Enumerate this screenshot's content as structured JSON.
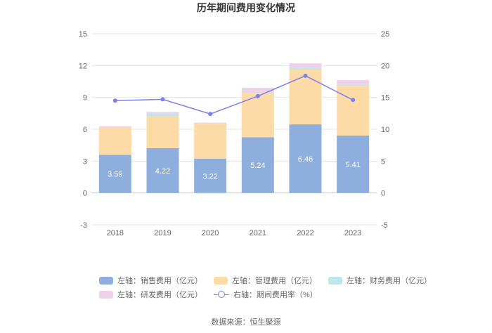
{
  "chart_data": {
    "type": "bar",
    "title": "历年期间费用变化情况",
    "categories": [
      "2018",
      "2019",
      "2020",
      "2021",
      "2022",
      "2023"
    ],
    "stacked": true,
    "left_axis": {
      "ylim": [
        -3,
        15
      ],
      "ticks": [
        "-3",
        "0",
        "3",
        "6",
        "9",
        "12",
        "15"
      ]
    },
    "right_axis": {
      "ylim": [
        -5,
        25
      ],
      "ticks": [
        "-5",
        "0",
        "5",
        "10",
        "15",
        "20",
        "25"
      ]
    },
    "series": [
      {
        "name": "左轴：销售费用（亿元）",
        "color": "#8eaedd",
        "axis": "left",
        "values": [
          3.59,
          4.22,
          3.22,
          5.24,
          6.46,
          5.41
        ],
        "labels": [
          "3.59",
          "4.22",
          "3.22",
          "5.24",
          "6.46",
          "5.41"
        ]
      },
      {
        "name": "左轴：管理费用（亿元）",
        "color": "#fddba6",
        "axis": "left",
        "values": [
          2.62,
          2.98,
          3.3,
          4.18,
          5.2,
          4.68
        ]
      },
      {
        "name": "左轴：财务费用（亿元）",
        "color": "#c0e5ea",
        "axis": "left",
        "values": [
          0.0,
          0.28,
          -0.02,
          0.05,
          0.15,
          0.12
        ]
      },
      {
        "name": "左轴：研发费用（亿元）",
        "color": "#efd0ea",
        "axis": "left",
        "values": [
          0.08,
          0.15,
          0.1,
          0.43,
          0.4,
          0.42
        ]
      },
      {
        "name": "右轴：期间费用率（%）",
        "color": "#7b7ff0",
        "axis": "right",
        "type": "line",
        "values": [
          14.5,
          14.7,
          12.4,
          15.2,
          18.4,
          14.6
        ]
      }
    ]
  },
  "source": "数据来源：恒生聚源"
}
